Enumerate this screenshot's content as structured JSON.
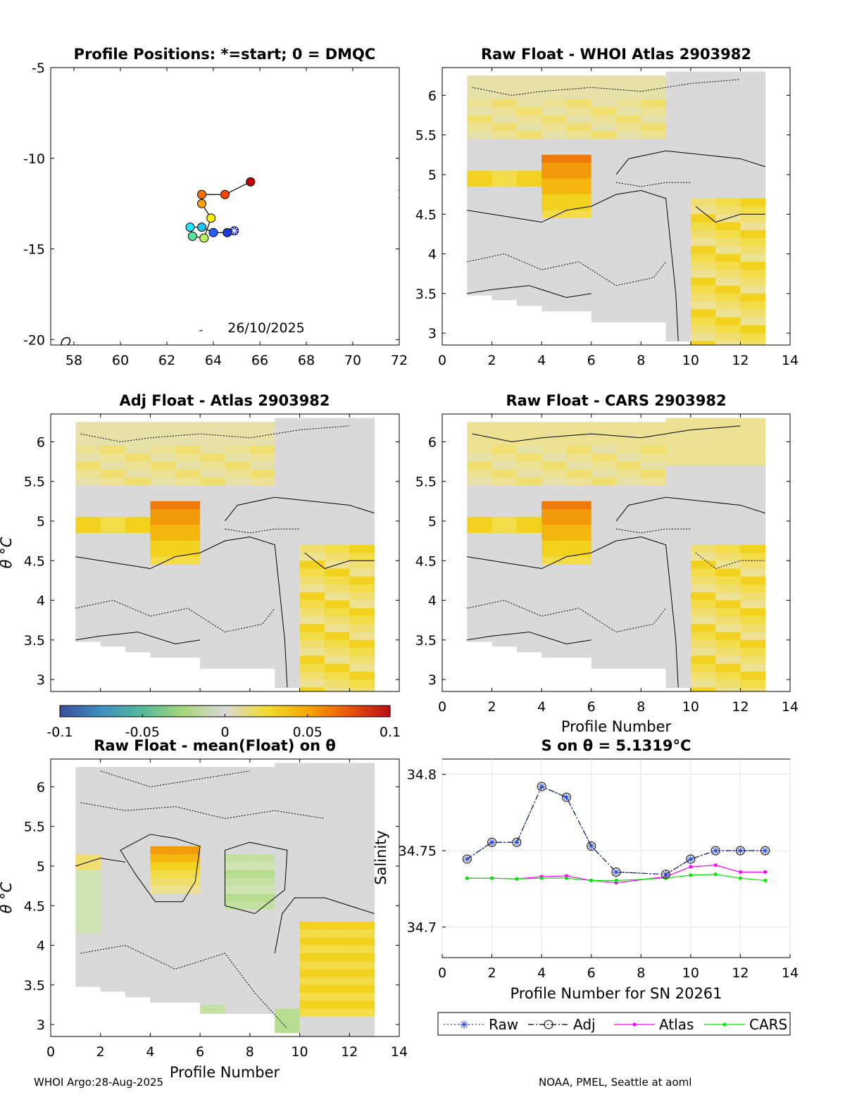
{
  "figure_credits": {
    "left": "WHOI Argo:28-Aug-2025",
    "right": "NOAA, PMEL, Seattle at aoml"
  },
  "colorbar": {
    "ticks": [
      "-0.1",
      "-0.05",
      "0",
      "0.05",
      "0.1"
    ],
    "range": [
      -0.1,
      0.1
    ],
    "colors": [
      "#3b4d9a",
      "#3f8fbf",
      "#53b99a",
      "#a8d679",
      "#d9d9d9",
      "#f0dc30",
      "#f5a800",
      "#e8550c",
      "#b80d14"
    ]
  },
  "chart_data": [
    {
      "id": "positions",
      "type": "scatter",
      "title": "Profile Positions: *=start; 0 = DMQC",
      "xlim": [
        57,
        72
      ],
      "ylim": [
        -20.3,
        -5
      ],
      "xticks": [
        "58",
        "60",
        "62",
        "64",
        "66",
        "68",
        "70",
        "72"
      ],
      "yticks": [
        "-5",
        "-10",
        "-15",
        "-20"
      ],
      "annotation": "26/10/2025",
      "points": [
        {
          "lon": 64.9,
          "lat": -14.0,
          "color": "#1c3ae0",
          "start": true
        },
        {
          "lon": 64.6,
          "lat": -14.1,
          "color": "#1c3ae0"
        },
        {
          "lon": 64.0,
          "lat": -14.1,
          "color": "#2462ff"
        },
        {
          "lon": 63.5,
          "lat": -13.8,
          "color": "#18c8f0"
        },
        {
          "lon": 63.0,
          "lat": -13.8,
          "color": "#19e6ff"
        },
        {
          "lon": 63.1,
          "lat": -14.3,
          "color": "#58e69a"
        },
        {
          "lon": 63.6,
          "lat": -14.4,
          "color": "#b8f062"
        },
        {
          "lon": 63.9,
          "lat": -13.3,
          "color": "#f8f000"
        },
        {
          "lon": 63.5,
          "lat": -12.5,
          "color": "#ffa000"
        },
        {
          "lon": 63.5,
          "lat": -12.0,
          "color": "#ff7000"
        },
        {
          "lon": 64.5,
          "lat": -12.0,
          "color": "#ff4500"
        },
        {
          "lon": 65.6,
          "lat": -11.3,
          "color": "#c00000"
        }
      ]
    },
    {
      "id": "raw_atlas",
      "type": "heatmap",
      "title": "Raw Float - WHOI Atlas  2903982",
      "xlim": [
        0,
        14
      ],
      "ylim": [
        2.85,
        6.35
      ],
      "xticks": [
        "0",
        "2",
        "4",
        "6",
        "8",
        "10",
        "12",
        "14"
      ],
      "yticks": [
        "3",
        "3.5",
        "4",
        "4.5",
        "5",
        "5.5",
        "6"
      ],
      "xlabel": "",
      "ylabel": ""
    },
    {
      "id": "adj_atlas",
      "type": "heatmap",
      "title": "Adj Float - Atlas  2903982",
      "xlim": [
        0,
        14
      ],
      "ylim": [
        2.85,
        6.35
      ],
      "xticks": [],
      "yticks": [
        "3",
        "3.5",
        "4",
        "4.5",
        "5",
        "5.5",
        "6"
      ],
      "xlabel": "",
      "ylabel": "θ °C"
    },
    {
      "id": "raw_cars",
      "type": "heatmap",
      "title": "Raw Float - CARS  2903982",
      "xlim": [
        0,
        14
      ],
      "ylim": [
        2.85,
        6.35
      ],
      "xticks": [
        "0",
        "2",
        "4",
        "6",
        "8",
        "10",
        "12",
        "14"
      ],
      "yticks": [
        "3",
        "3.5",
        "4",
        "4.5",
        "5",
        "5.5",
        "6"
      ],
      "xlabel": "Profile Number",
      "ylabel": ""
    },
    {
      "id": "raw_mean",
      "type": "heatmap",
      "title": "Raw Float - mean(Float) on θ",
      "xlim": [
        0,
        14
      ],
      "ylim": [
        2.85,
        6.35
      ],
      "xticks": [
        "0",
        "2",
        "4",
        "6",
        "8",
        "10",
        "12",
        "14"
      ],
      "yticks": [
        "3",
        "3.5",
        "4",
        "4.5",
        "5",
        "5.5",
        "6"
      ],
      "xlabel": "Profile Number",
      "ylabel": "θ °C"
    },
    {
      "id": "salinity",
      "type": "line",
      "title": "S on θ = 5.1319°C",
      "xlabel": "Profile Number for SN 20261",
      "ylabel": "Salinity",
      "xlim": [
        0,
        14
      ],
      "ylim": [
        34.68,
        34.81
      ],
      "xticks": [
        "0",
        "2",
        "4",
        "6",
        "8",
        "10",
        "12",
        "14"
      ],
      "yticks": [
        "34.7",
        "34.75",
        "34.8"
      ],
      "x": [
        1,
        2,
        3,
        4,
        5,
        6,
        7,
        9,
        10,
        11,
        12,
        13
      ],
      "series": [
        {
          "name": "Raw",
          "color": "#1f3fd8",
          "values": [
            34.7445,
            34.7555,
            34.7555,
            34.792,
            34.785,
            34.753,
            34.736,
            34.7345,
            34.7445,
            34.75,
            34.75,
            34.75
          ]
        },
        {
          "name": "Adj",
          "color": "#000000",
          "values": [
            34.7445,
            34.7555,
            34.7555,
            34.792,
            34.785,
            34.753,
            34.736,
            34.7345,
            34.7445,
            34.75,
            34.75,
            34.75
          ]
        },
        {
          "name": "Atlas",
          "color": "#ff00ff",
          "values": [
            34.732,
            34.732,
            34.7315,
            34.733,
            34.7335,
            34.7305,
            34.729,
            34.733,
            34.7395,
            34.7405,
            34.736,
            34.736
          ]
        },
        {
          "name": "CARS",
          "color": "#00e600",
          "values": [
            34.732,
            34.732,
            34.7315,
            34.732,
            34.732,
            34.7305,
            34.7305,
            34.732,
            34.734,
            34.7345,
            34.732,
            34.7305
          ]
        }
      ],
      "legend": [
        "Raw",
        "Adj",
        "Atlas",
        "CARS"
      ]
    }
  ]
}
